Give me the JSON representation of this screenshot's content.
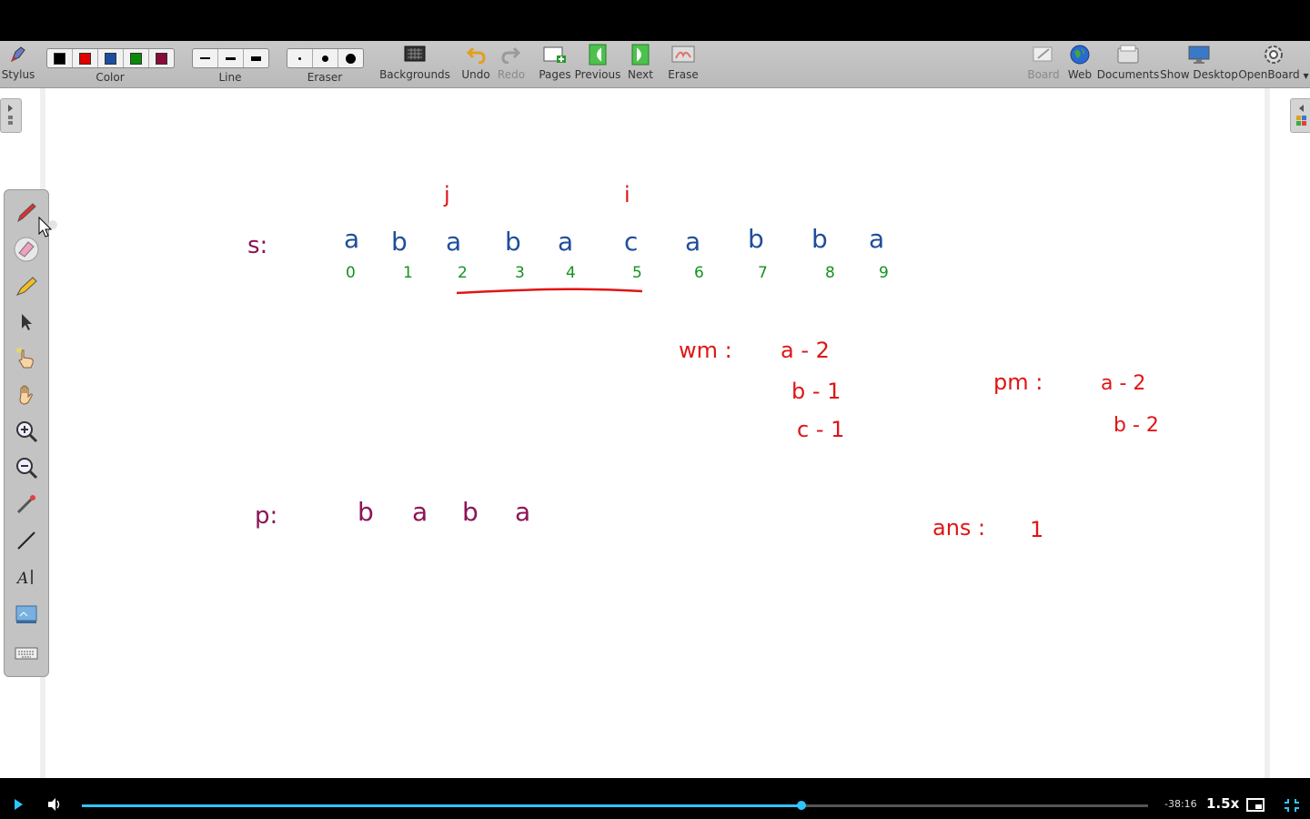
{
  "toolbar": {
    "stylus_label": "Stylus",
    "color_label": "Color",
    "line_label": "Line",
    "eraser_label": "Eraser",
    "backgrounds_label": "Backgrounds",
    "undo_label": "Undo",
    "redo_label": "Redo",
    "pages_label": "Pages",
    "previous_label": "Previous",
    "next_label": "Next",
    "erase_label": "Erase",
    "board_label": "Board",
    "web_label": "Web",
    "documents_label": "Documents",
    "show_desktop_label": "Show Desktop",
    "openboard_label": "OpenBoard",
    "colors": [
      "#000000",
      "#e00000",
      "#1a4fa0",
      "#0a8a0a",
      "#8a0a3a"
    ]
  },
  "board": {
    "s_label": "s:",
    "string_chars": [
      "a",
      "b",
      "a",
      "b",
      "a",
      "c",
      "a",
      "b",
      "b",
      "a"
    ],
    "indices": [
      "0",
      "1",
      "2",
      "3",
      "4",
      "5",
      "6",
      "7",
      "8",
      "9"
    ],
    "pointer_j": "j",
    "pointer_i": "i",
    "wm_label": "wm :",
    "wm_entries": [
      "a - 2",
      "b - 1",
      "c - 1"
    ],
    "pm_label": "pm :",
    "pm_entries": [
      "a - 2",
      "b - 2"
    ],
    "p_label": "p:",
    "pattern_chars": [
      "b",
      "a",
      "b",
      "a"
    ],
    "ans_label": "ans :",
    "ans_value": "1",
    "colors": {
      "blue": "#1f4e99",
      "green": "#13921f",
      "red": "#e01515",
      "maroon": "#8c1457"
    }
  },
  "player": {
    "time_remaining": "-38:16",
    "speed": "1.5x",
    "progress_fraction": 0.675
  }
}
